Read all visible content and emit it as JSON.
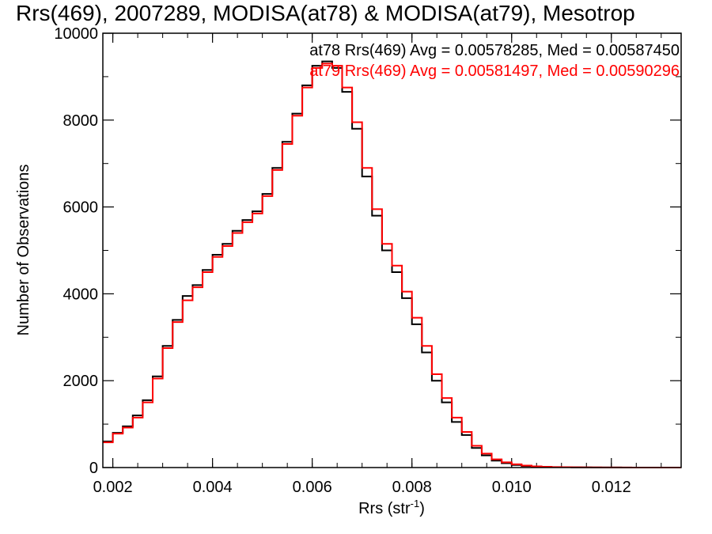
{
  "chart_data": {
    "type": "line",
    "title": "Rrs(469), 2007289, MODISA(at78) & MODISA(at79), Mesotrop",
    "xlabel_main": "Rrs (str",
    "xlabel_sup": "-1",
    "xlabel_close": ")",
    "ylabel": "Number of Observations",
    "xlim": [
      0.0018,
      0.0134
    ],
    "ylim": [
      0,
      10000
    ],
    "x_ticks": [
      0.002,
      0.004,
      0.006,
      0.008,
      0.01,
      0.012
    ],
    "x_tick_labels": [
      "0.002",
      "0.004",
      "0.006",
      "0.008",
      "0.010",
      "0.012"
    ],
    "y_ticks": [
      0,
      2000,
      4000,
      6000,
      8000,
      10000
    ],
    "y_tick_labels": [
      "0",
      "2000",
      "4000",
      "6000",
      "8000",
      "10000"
    ],
    "grid": false,
    "annotations": [
      {
        "text": "at78 Rrs(469) Avg = 0.00578285, Med = 0.00587450",
        "color": "#000000"
      },
      {
        "text": "at79 Rrs(469) Avg = 0.00581497, Med = 0.00590296",
        "color": "#ff0000"
      }
    ],
    "series": [
      {
        "color": "#000000",
        "x": [
          0.0018,
          0.002,
          0.0022,
          0.0024,
          0.0026,
          0.0028,
          0.003,
          0.0032,
          0.0034,
          0.0036,
          0.0038,
          0.004,
          0.0042,
          0.0044,
          0.0046,
          0.0048,
          0.005,
          0.0052,
          0.0054,
          0.0056,
          0.0058,
          0.006,
          0.0062,
          0.0064,
          0.0066,
          0.0068,
          0.007,
          0.0072,
          0.0074,
          0.0076,
          0.0078,
          0.008,
          0.0082,
          0.0084,
          0.0086,
          0.0088,
          0.009,
          0.0092,
          0.0094,
          0.0096,
          0.0098,
          0.01,
          0.0102,
          0.0104,
          0.0106,
          0.0108,
          0.011,
          0.0112,
          0.0114,
          0.0116,
          0.0118,
          0.012,
          0.0122,
          0.0124,
          0.0126,
          0.0128,
          0.013,
          0.0132,
          0.0134
        ],
        "y": [
          600,
          800,
          950,
          1200,
          1550,
          2100,
          2800,
          3400,
          3950,
          4200,
          4550,
          4900,
          5150,
          5450,
          5700,
          5900,
          6300,
          6900,
          7500,
          8150,
          8800,
          9250,
          9350,
          9200,
          8650,
          7800,
          6700,
          5800,
          5000,
          4500,
          3900,
          3300,
          2650,
          2000,
          1500,
          1050,
          750,
          450,
          280,
          160,
          100,
          60,
          35,
          20,
          15,
          10,
          8,
          5,
          4,
          3,
          2,
          2,
          1,
          1,
          1,
          0,
          0,
          0,
          0
        ]
      },
      {
        "color": "#ff0000",
        "x": [
          0.0018,
          0.002,
          0.0022,
          0.0024,
          0.0026,
          0.0028,
          0.003,
          0.0032,
          0.0034,
          0.0036,
          0.0038,
          0.004,
          0.0042,
          0.0044,
          0.0046,
          0.0048,
          0.005,
          0.0052,
          0.0054,
          0.0056,
          0.0058,
          0.006,
          0.0062,
          0.0064,
          0.0066,
          0.0068,
          0.007,
          0.0072,
          0.0074,
          0.0076,
          0.0078,
          0.008,
          0.0082,
          0.0084,
          0.0086,
          0.0088,
          0.009,
          0.0092,
          0.0094,
          0.0096,
          0.0098,
          0.01,
          0.0102,
          0.0104,
          0.0106,
          0.0108,
          0.011,
          0.0112,
          0.0114,
          0.0116,
          0.0118,
          0.012,
          0.0122,
          0.0124,
          0.0126,
          0.0128,
          0.013,
          0.0132,
          0.0134
        ],
        "y": [
          580,
          780,
          920,
          1150,
          1500,
          2050,
          2750,
          3350,
          3850,
          4150,
          4500,
          4850,
          5100,
          5400,
          5650,
          5850,
          6250,
          6850,
          7450,
          8100,
          8750,
          9200,
          9300,
          9250,
          8750,
          7950,
          6900,
          5950,
          5150,
          4650,
          4050,
          3450,
          2800,
          2150,
          1600,
          1150,
          820,
          500,
          320,
          190,
          120,
          75,
          45,
          28,
          18,
          12,
          9,
          6,
          5,
          4,
          3,
          2,
          2,
          1,
          1,
          1,
          0,
          0,
          0
        ]
      }
    ]
  }
}
